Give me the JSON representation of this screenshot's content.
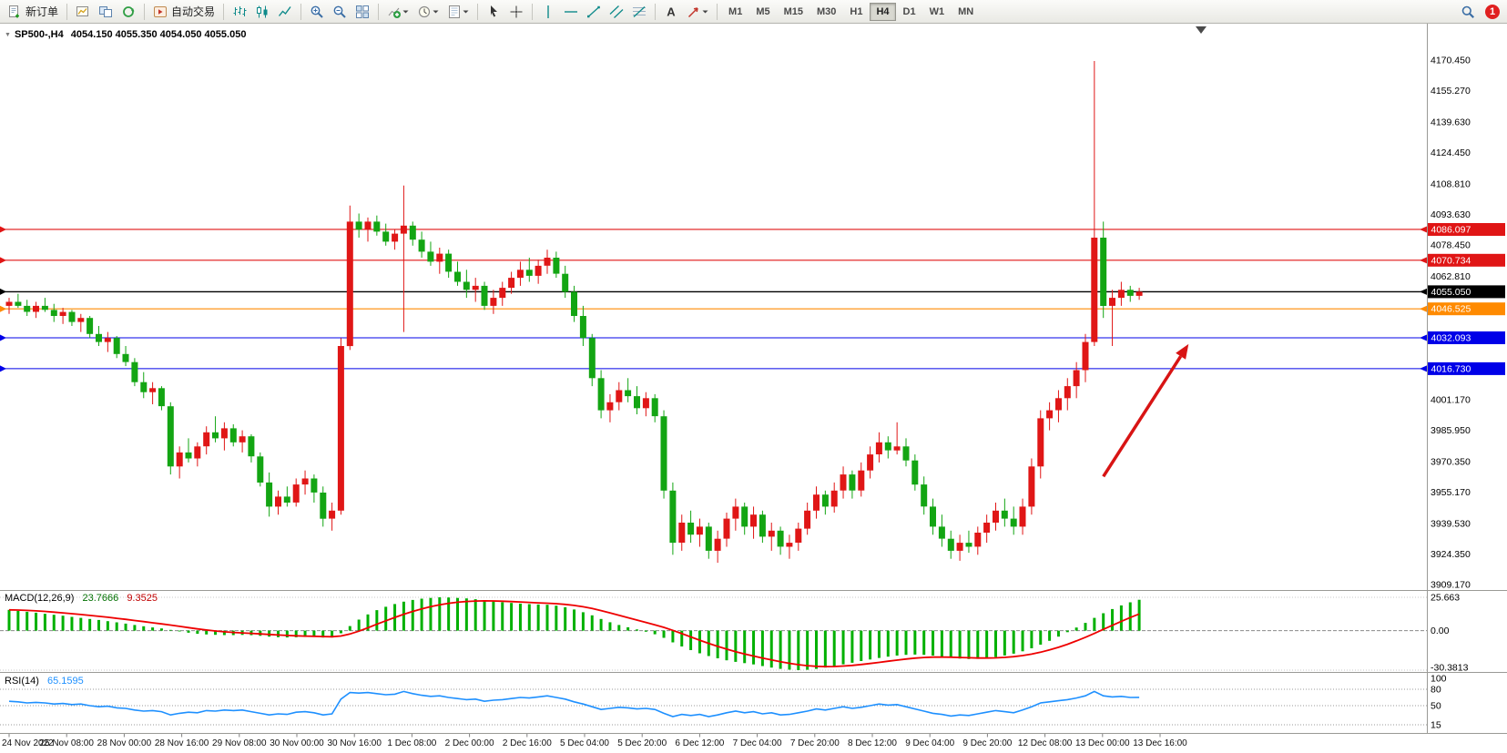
{
  "toolbar": {
    "groups": [
      {
        "items": [
          {
            "name": "new-order-button",
            "icon": "doc-plus",
            "label": "新订单"
          }
        ]
      },
      {
        "items": [
          {
            "name": "new-chart-button",
            "icon": "chart-plus"
          },
          {
            "name": "profiles-button",
            "icon": "profiles"
          },
          {
            "name": "refresh-button",
            "icon": "cycle"
          }
        ]
      },
      {
        "items": [
          {
            "name": "autotrading-button",
            "icon": "autotrading",
            "label": "自动交易"
          }
        ]
      },
      {
        "items": [
          {
            "name": "bar-chart-button",
            "icon": "bars"
          },
          {
            "name": "candlestick-chart-button",
            "icon": "candles"
          },
          {
            "name": "line-chart-button",
            "icon": "linechart"
          }
        ]
      },
      {
        "items": [
          {
            "name": "zoom-in-button",
            "icon": "zoom-in"
          },
          {
            "name": "zoom-out-button",
            "icon": "zoom-out"
          },
          {
            "name": "tile-windows-button",
            "icon": "tile"
          }
        ]
      },
      {
        "items": [
          {
            "name": "indicators-button",
            "icon": "indicators",
            "caret": true
          },
          {
            "name": "periods-button",
            "icon": "periods",
            "caret": true
          },
          {
            "name": "templates-button",
            "icon": "templates",
            "caret": true
          }
        ]
      },
      {
        "items": [
          {
            "name": "cursor-button",
            "icon": "cursor"
          },
          {
            "name": "crosshair-button",
            "icon": "crosshair"
          }
        ]
      },
      {
        "items": [
          {
            "name": "vertical-line-button",
            "icon": "vline"
          },
          {
            "name": "horizontal-line-button",
            "icon": "hline"
          },
          {
            "name": "trendline-button",
            "icon": "trendline"
          },
          {
            "name": "channel-button",
            "icon": "channel"
          },
          {
            "name": "fibonacci-button",
            "icon": "fibonacci"
          }
        ]
      },
      {
        "items": [
          {
            "name": "text-label-button",
            "icon": "text"
          },
          {
            "name": "arrow-objects-button",
            "icon": "arrows",
            "caret": true
          }
        ]
      }
    ],
    "timeframes": {
      "labels": [
        "M1",
        "M5",
        "M15",
        "M30",
        "H1",
        "H4",
        "D1",
        "W1",
        "MN"
      ],
      "active": "H4"
    },
    "right": {
      "notification_count": "1"
    }
  },
  "chart": {
    "symbol": "SP500-,H4",
    "ohlc": "4054.150 4055.350 4054.050 4055.050"
  },
  "colors": {
    "candle_up": "#e01616",
    "candle_down": "#13a513",
    "macd_histogram": "#00b000",
    "macd_signal": "#ee0000",
    "rsi_line": "#1e90ff",
    "arrow": "#d81414"
  },
  "chart_data": {
    "type": "candlestick+indicators",
    "symbol": "SP500-",
    "timeframe": "H4",
    "price_axis": [
      {
        "text": "4170.450",
        "price": 4170.45
      },
      {
        "text": "4155.270",
        "price": 4155.27
      },
      {
        "text": "4139.630",
        "price": 4139.63
      },
      {
        "text": "4124.450",
        "price": 4124.45
      },
      {
        "text": "4108.810",
        "price": 4108.81
      },
      {
        "text": "4093.630",
        "price": 4093.63
      },
      {
        "text": "4078.450",
        "price": 4078.45
      },
      {
        "text": "4062.810",
        "price": 4062.81
      },
      {
        "text": "4001.170",
        "price": 4001.17
      },
      {
        "text": "3985.950",
        "price": 3985.95
      },
      {
        "text": "3970.350",
        "price": 3970.35
      },
      {
        "text": "3955.170",
        "price": 3955.17
      },
      {
        "text": "3939.530",
        "price": 3939.53
      },
      {
        "text": "3924.350",
        "price": 3924.35
      },
      {
        "text": "3909.170",
        "price": 3909.17
      }
    ],
    "level_lines": [
      {
        "label": "4086.097",
        "price": 4086.097,
        "color": "#e01515"
      },
      {
        "label": "4070.734",
        "price": 4070.734,
        "color": "#e01515"
      },
      {
        "label": "4055.050",
        "price": 4055.05,
        "color": "#000000"
      },
      {
        "label": "4046.525",
        "price": 4046.525,
        "color": "#ff8a00"
      },
      {
        "label": "4032.093",
        "price": 4032.093,
        "color": "#0000e8"
      },
      {
        "label": "4016.730",
        "price": 4016.73,
        "color": "#0000e8"
      }
    ],
    "candles": [
      [
        4048,
        4052,
        4044,
        4050
      ],
      [
        4050,
        4054,
        4047,
        4048
      ],
      [
        4048,
        4051,
        4043,
        4045
      ],
      [
        4045,
        4050,
        4042,
        4048
      ],
      [
        4048,
        4052,
        4045,
        4046
      ],
      [
        4046,
        4049,
        4040,
        4043
      ],
      [
        4043,
        4047,
        4039,
        4045
      ],
      [
        4045,
        4046,
        4038,
        4040
      ],
      [
        4040,
        4044,
        4035,
        4042
      ],
      [
        4042,
        4043,
        4032,
        4034
      ],
      [
        4034,
        4038,
        4028,
        4030
      ],
      [
        4030,
        4035,
        4025,
        4032
      ],
      [
        4032,
        4033,
        4022,
        4024
      ],
      [
        4024,
        4028,
        4018,
        4020
      ],
      [
        4020,
        4022,
        4008,
        4010
      ],
      [
        4010,
        4015,
        4002,
        4005
      ],
      [
        4005,
        4010,
        3999,
        4007
      ],
      [
        4007,
        4008,
        3996,
        3998
      ],
      [
        3998,
        4000,
        3964,
        3968
      ],
      [
        3968,
        3978,
        3962,
        3975
      ],
      [
        3975,
        3982,
        3970,
        3972
      ],
      [
        3972,
        3980,
        3968,
        3978
      ],
      [
        3978,
        3988,
        3974,
        3985
      ],
      [
        3985,
        3993,
        3980,
        3982
      ],
      [
        3982,
        3990,
        3976,
        3987
      ],
      [
        3987,
        3989,
        3978,
        3980
      ],
      [
        3980,
        3986,
        3975,
        3983
      ],
      [
        3983,
        3984,
        3970,
        3973
      ],
      [
        3973,
        3975,
        3958,
        3960
      ],
      [
        3960,
        3965,
        3943,
        3948
      ],
      [
        3948,
        3956,
        3944,
        3953
      ],
      [
        3953,
        3958,
        3948,
        3950
      ],
      [
        3950,
        3962,
        3948,
        3959
      ],
      [
        3959,
        3966,
        3954,
        3962
      ],
      [
        3962,
        3964,
        3950,
        3955
      ],
      [
        3955,
        3958,
        3938,
        3942
      ],
      [
        3942,
        3950,
        3936,
        3946
      ],
      [
        3946,
        4032,
        3944,
        4028
      ],
      [
        4028,
        4098,
        4026,
        4090
      ],
      [
        4090,
        4094,
        4082,
        4086
      ],
      [
        4086,
        4092,
        4080,
        4090
      ],
      [
        4090,
        4093,
        4083,
        4085
      ],
      [
        4085,
        4089,
        4078,
        4080
      ],
      [
        4080,
        4086,
        4076,
        4084
      ],
      [
        4084,
        4108,
        4035,
        4088
      ],
      [
        4088,
        4090,
        4078,
        4081
      ],
      [
        4081,
        4085,
        4072,
        4075
      ],
      [
        4075,
        4080,
        4068,
        4070
      ],
      [
        4070,
        4077,
        4064,
        4074
      ],
      [
        4074,
        4076,
        4062,
        4065
      ],
      [
        4065,
        4070,
        4058,
        4060
      ],
      [
        4060,
        4066,
        4052,
        4056
      ],
      [
        4056,
        4062,
        4050,
        4058
      ],
      [
        4058,
        4060,
        4046,
        4048
      ],
      [
        4048,
        4056,
        4044,
        4052
      ],
      [
        4052,
        4060,
        4048,
        4057
      ],
      [
        4057,
        4065,
        4054,
        4062
      ],
      [
        4062,
        4070,
        4058,
        4066
      ],
      [
        4066,
        4072,
        4060,
        4063
      ],
      [
        4063,
        4071,
        4059,
        4068
      ],
      [
        4068,
        4076,
        4064,
        4072
      ],
      [
        4072,
        4075,
        4062,
        4064
      ],
      [
        4064,
        4068,
        4052,
        4055
      ],
      [
        4055,
        4058,
        4040,
        4043
      ],
      [
        4043,
        4048,
        4028,
        4032
      ],
      [
        4032,
        4034,
        4008,
        4012
      ],
      [
        4012,
        4016,
        3992,
        3996
      ],
      [
        3996,
        4004,
        3990,
        4000
      ],
      [
        4000,
        4010,
        3996,
        4006
      ],
      [
        4006,
        4012,
        4000,
        4003
      ],
      [
        4003,
        4008,
        3994,
        3997
      ],
      [
        3997,
        4005,
        3993,
        4002
      ],
      [
        4002,
        4004,
        3990,
        3993
      ],
      [
        3993,
        3996,
        3952,
        3956
      ],
      [
        3956,
        3960,
        3924,
        3930
      ],
      [
        3930,
        3944,
        3926,
        3940
      ],
      [
        3940,
        3946,
        3930,
        3934
      ],
      [
        3934,
        3942,
        3928,
        3938
      ],
      [
        3938,
        3940,
        3922,
        3926
      ],
      [
        3926,
        3936,
        3920,
        3932
      ],
      [
        3932,
        3945,
        3928,
        3942
      ],
      [
        3942,
        3952,
        3936,
        3948
      ],
      [
        3948,
        3950,
        3934,
        3938
      ],
      [
        3938,
        3948,
        3932,
        3944
      ],
      [
        3944,
        3946,
        3930,
        3933
      ],
      [
        3933,
        3940,
        3926,
        3936
      ],
      [
        3936,
        3938,
        3924,
        3928
      ],
      [
        3928,
        3934,
        3922,
        3930
      ],
      [
        3930,
        3940,
        3926,
        3937
      ],
      [
        3937,
        3950,
        3934,
        3946
      ],
      [
        3946,
        3958,
        3942,
        3954
      ],
      [
        3954,
        3956,
        3944,
        3948
      ],
      [
        3948,
        3960,
        3945,
        3956
      ],
      [
        3956,
        3968,
        3952,
        3964
      ],
      [
        3964,
        3966,
        3952,
        3956
      ],
      [
        3956,
        3970,
        3953,
        3966
      ],
      [
        3966,
        3978,
        3962,
        3974
      ],
      [
        3974,
        3985,
        3970,
        3980
      ],
      [
        3980,
        3983,
        3972,
        3976
      ],
      [
        3976,
        3990,
        3974,
        3978
      ],
      [
        3978,
        3982,
        3968,
        3971
      ],
      [
        3971,
        3974,
        3956,
        3959
      ],
      [
        3959,
        3963,
        3944,
        3948
      ],
      [
        3948,
        3952,
        3934,
        3938
      ],
      [
        3938,
        3944,
        3928,
        3932
      ],
      [
        3932,
        3936,
        3922,
        3926
      ],
      [
        3926,
        3934,
        3921,
        3930
      ],
      [
        3930,
        3936,
        3925,
        3928
      ],
      [
        3928,
        3938,
        3924,
        3935
      ],
      [
        3935,
        3944,
        3930,
        3940
      ],
      [
        3940,
        3950,
        3936,
        3946
      ],
      [
        3946,
        3952,
        3938,
        3942
      ],
      [
        3942,
        3948,
        3934,
        3938
      ],
      [
        3938,
        3952,
        3934,
        3948
      ],
      [
        3948,
        3972,
        3944,
        3968
      ],
      [
        3968,
        3996,
        3962,
        3992
      ],
      [
        3992,
        4000,
        3986,
        3996
      ],
      [
        3996,
        4006,
        3990,
        4002
      ],
      [
        4002,
        4012,
        3996,
        4008
      ],
      [
        4008,
        4020,
        4002,
        4016
      ],
      [
        4016,
        4034,
        4010,
        4030
      ],
      [
        4030,
        4170,
        4028,
        4082
      ],
      [
        4082,
        4090,
        4042,
        4048
      ],
      [
        4048,
        4056,
        4028,
        4052
      ],
      [
        4052,
        4060,
        4048,
        4056
      ],
      [
        4056,
        4058,
        4050,
        4053
      ],
      [
        4053,
        4057,
        4051,
        4055.05
      ]
    ],
    "macd": {
      "label": "MACD(12,26,9)",
      "main_value": "23.7666",
      "signal_value": "9.3525",
      "axis_max": 25.663,
      "axis_min": -30.3813,
      "axis_labels": [
        {
          "text": "25.663",
          "value": 25.663
        },
        {
          "text": "0.00",
          "value": 0
        },
        {
          "text": "-30.3813",
          "value": -30.3813
        }
      ],
      "values": [
        16,
        15.2,
        14.5,
        13.8,
        13,
        12.2,
        11.5,
        10.6,
        9.8,
        9,
        8.2,
        7.3,
        6.4,
        5.4,
        4.4,
        3.4,
        2.5,
        1.7,
        0.6,
        -0.6,
        -1.6,
        -2.4,
        -2.9,
        -3.2,
        -3.4,
        -3.4,
        -3.3,
        -3.5,
        -4,
        -4.6,
        -5,
        -5.2,
        -5.1,
        -4.9,
        -4.9,
        -5.3,
        -5.2,
        -2,
        3.5,
        8.5,
        12.5,
        15.8,
        18.4,
        20.5,
        22.3,
        23.6,
        24.6,
        25.2,
        25.663,
        25.5,
        25.2,
        24.8,
        24.2,
        23.4,
        22.6,
        21.9,
        21.3,
        20.8,
        20.4,
        20.1,
        19.9,
        19.2,
        18,
        16.3,
        14.2,
        11.8,
        9,
        6.5,
        4.4,
        2.6,
        0.9,
        -0.8,
        -2.8,
        -5.5,
        -9,
        -12.2,
        -15,
        -17.4,
        -19.5,
        -21.3,
        -22.8,
        -24,
        -25,
        -26,
        -27.2,
        -28.4,
        -29.4,
        -30,
        -30.3813,
        -30.1,
        -29.4,
        -28.4,
        -27.2,
        -25.9,
        -24.7,
        -23.4,
        -22.2,
        -21,
        -20,
        -19.2,
        -18.6,
        -18.4,
        -18.6,
        -19.2,
        -20,
        -20.9,
        -21.5,
        -21.8,
        -21.7,
        -21.2,
        -20.3,
        -19.1,
        -17.7,
        -15.9,
        -13.6,
        -10.8,
        -7.8,
        -4.6,
        -1.2,
        2.4,
        6,
        9.8,
        13.4,
        16.6,
        19.4,
        21.8,
        23.7666
      ]
    },
    "rsi": {
      "label": "RSI(14)",
      "value": "65.1595",
      "levels": [
        80,
        50,
        15
      ],
      "axis_labels": [
        {
          "text": "100",
          "value": 100
        },
        {
          "text": "80",
          "value": 80
        },
        {
          "text": "50",
          "value": 50
        },
        {
          "text": "15",
          "value": 15
        }
      ],
      "values": [
        58,
        57,
        55,
        56,
        55,
        53,
        54,
        52,
        53,
        50,
        48,
        49,
        46,
        45,
        42,
        40,
        41,
        39,
        33,
        36,
        38,
        37,
        41,
        40,
        42,
        41,
        42,
        39,
        36,
        33,
        35,
        34,
        38,
        39,
        37,
        33,
        35,
        62,
        74,
        73,
        74,
        72,
        70,
        71,
        76,
        72,
        69,
        67,
        68,
        65,
        63,
        61,
        62,
        58,
        60,
        61,
        63,
        65,
        64,
        66,
        68,
        65,
        62,
        57,
        53,
        48,
        43,
        45,
        47,
        46,
        44,
        45,
        43,
        36,
        30,
        34,
        32,
        34,
        30,
        33,
        37,
        40,
        37,
        39,
        35,
        37,
        33,
        34,
        37,
        40,
        44,
        42,
        45,
        48,
        45,
        47,
        50,
        53,
        51,
        52,
        48,
        44,
        40,
        36,
        34,
        31,
        33,
        32,
        35,
        38,
        41,
        39,
        37,
        42,
        48,
        55,
        57,
        59,
        61,
        64,
        68,
        76,
        68,
        66,
        67,
        65,
        65.16
      ]
    },
    "time_labels": [
      "24 Nov 2022",
      "25 Nov 08:00",
      "28 Nov 00:00",
      "28 Nov 16:00",
      "29 Nov 08:00",
      "30 Nov 00:00",
      "30 Nov 16:00",
      "1 Dec 08:00",
      "2 Dec 00:00",
      "2 Dec 16:00",
      "5 Dec 04:00",
      "5 Dec 20:00",
      "6 Dec 12:00",
      "7 Dec 04:00",
      "7 Dec 20:00",
      "8 Dec 12:00",
      "9 Dec 04:00",
      "9 Dec 20:00",
      "12 Dec 08:00",
      "13 Dec 00:00",
      "13 Dec 16:00"
    ],
    "annotations": {
      "arrow": {
        "from_index": 122,
        "from_price": 3963,
        "to_index": 131.5,
        "to_price": 4029,
        "color": "#d81414"
      }
    }
  }
}
